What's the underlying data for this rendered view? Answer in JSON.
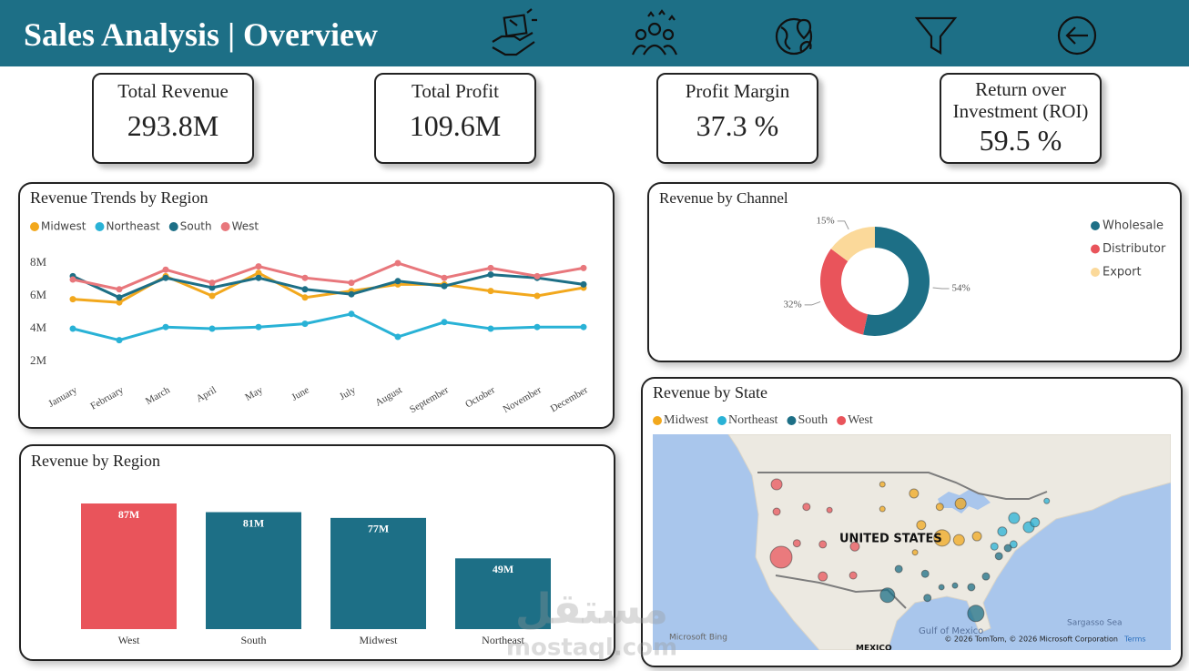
{
  "header": {
    "title": "Sales Analysis | Overview"
  },
  "kpis": [
    {
      "label": "Total Revenue",
      "value": "293.8M"
    },
    {
      "label": "Total Profit",
      "value": "109.6M"
    },
    {
      "label": "Profit Margin",
      "value": "37.3 %"
    },
    {
      "label": "Return over Investment (ROI)",
      "value": "59.5 %"
    }
  ],
  "chart_data": [
    {
      "type": "line",
      "title": "Revenue Trends by Region",
      "categories": [
        "January",
        "February",
        "March",
        "April",
        "May",
        "June",
        "July",
        "August",
        "September",
        "October",
        "November",
        "December"
      ],
      "series": [
        {
          "name": "Midwest",
          "color": "#f2a81d",
          "values": [
            5.8,
            5.6,
            7.2,
            6.0,
            7.4,
            5.9,
            6.3,
            6.7,
            6.7,
            6.3,
            6.0,
            6.5
          ]
        },
        {
          "name": "Northeast",
          "color": "#29b2d6",
          "values": [
            4.0,
            3.3,
            4.1,
            4.0,
            4.1,
            4.3,
            4.9,
            3.5,
            4.4,
            4.0,
            4.1,
            4.1
          ]
        },
        {
          "name": "South",
          "color": "#1d6f86",
          "values": [
            7.2,
            5.9,
            7.1,
            6.5,
            7.1,
            6.4,
            6.1,
            6.9,
            6.6,
            7.3,
            7.1,
            6.7
          ]
        },
        {
          "name": "West",
          "color": "#e8777c",
          "values": [
            7.0,
            6.4,
            7.6,
            6.8,
            7.8,
            7.1,
            6.8,
            8.0,
            7.1,
            7.7,
            7.2,
            7.7
          ]
        }
      ],
      "ylim": [
        1,
        8.5
      ],
      "yticks": [
        {
          "value": 2,
          "label": "2M"
        },
        {
          "value": 4,
          "label": "4M"
        },
        {
          "value": 6,
          "label": "6M"
        },
        {
          "value": 8,
          "label": "8M"
        }
      ]
    },
    {
      "type": "bar",
      "title": "Revenue by Region",
      "categories": [
        "West",
        "South",
        "Midwest",
        "Northeast"
      ],
      "values": [
        87,
        81,
        77,
        49
      ],
      "value_labels": [
        "87M",
        "81M",
        "77M",
        "49M"
      ],
      "colors": [
        "#e9545b",
        "#1d6f86",
        "#1d6f86",
        "#1d6f86"
      ]
    },
    {
      "type": "pie",
      "title": "Revenue by Channel",
      "donut": true,
      "categories": [
        "Wholesale",
        "Distributor",
        "Export"
      ],
      "values": [
        54,
        32,
        15
      ],
      "value_labels": [
        "54%",
        "32%",
        "15%"
      ],
      "colors": [
        "#1d6f86",
        "#e9545b",
        "#fbd99a"
      ]
    },
    {
      "type": "map",
      "title": "Revenue by State",
      "series": [
        {
          "name": "Midwest",
          "color": "#f2a81d",
          "x": [
            -100.0,
            -94.4,
            -86.1,
            -100.0,
            -89.8,
            -93.1,
            -89.4,
            -86.4,
            -83.2,
            -94.2
          ],
          "y": [
            47.6,
            45.9,
            44.0,
            43.0,
            43.4,
            40.0,
            37.6,
            37.2,
            37.9,
            34.9
          ],
          "size": [
            3,
            5,
            6,
            3,
            4,
            5,
            9,
            6,
            5,
            3
          ]
        },
        {
          "name": "Northeast",
          "color": "#29b2d6",
          "x": [
            -76.6,
            -74.0,
            -72.9,
            -78.7,
            -80.1,
            -76.7,
            -70.8
          ],
          "y": [
            41.3,
            39.6,
            40.5,
            38.8,
            36.0,
            36.4,
            44.5
          ],
          "size": [
            6,
            6,
            5,
            5,
            4,
            4,
            3
          ]
        },
        {
          "name": "South",
          "color": "#1d6f86",
          "x": [
            -97.1,
            -92.4,
            -89.5,
            -87.1,
            -84.2,
            -81.6,
            -77.7,
            -79.3,
            -99.1,
            -92.0,
            -83.4
          ],
          "y": [
            31.8,
            30.9,
            28.4,
            28.7,
            28.4,
            30.4,
            35.7,
            34.2,
            26.9,
            26.4,
            23.5
          ],
          "size": [
            4,
            4,
            3,
            3,
            4,
            4,
            4,
            4,
            8,
            4,
            9
          ]
        },
        {
          "name": "West",
          "color": "#e9545b",
          "x": [
            -118.8,
            -118.8,
            -113.5,
            -115.2,
            -118.0,
            -110.6,
            -104.9,
            -110.6,
            -105.2,
            -109.4
          ],
          "y": [
            47.6,
            42.5,
            43.4,
            36.6,
            34.0,
            36.4,
            36.0,
            30.4,
            30.6,
            42.8
          ],
          "size": [
            6,
            4,
            4,
            4,
            12,
            4,
            5,
            5,
            4,
            3
          ]
        }
      ],
      "labels": [
        "UNITED STATES",
        "Gulf of Mexico",
        "Sargasso Sea",
        "MEXICO",
        "Microsoft Bing",
        "© 2026 TomTom, © 2026 Microsoft Corporation",
        "Terms"
      ]
    }
  ],
  "watermark": {
    "arabic": "مستقل",
    "latin": "mostaql.com"
  }
}
